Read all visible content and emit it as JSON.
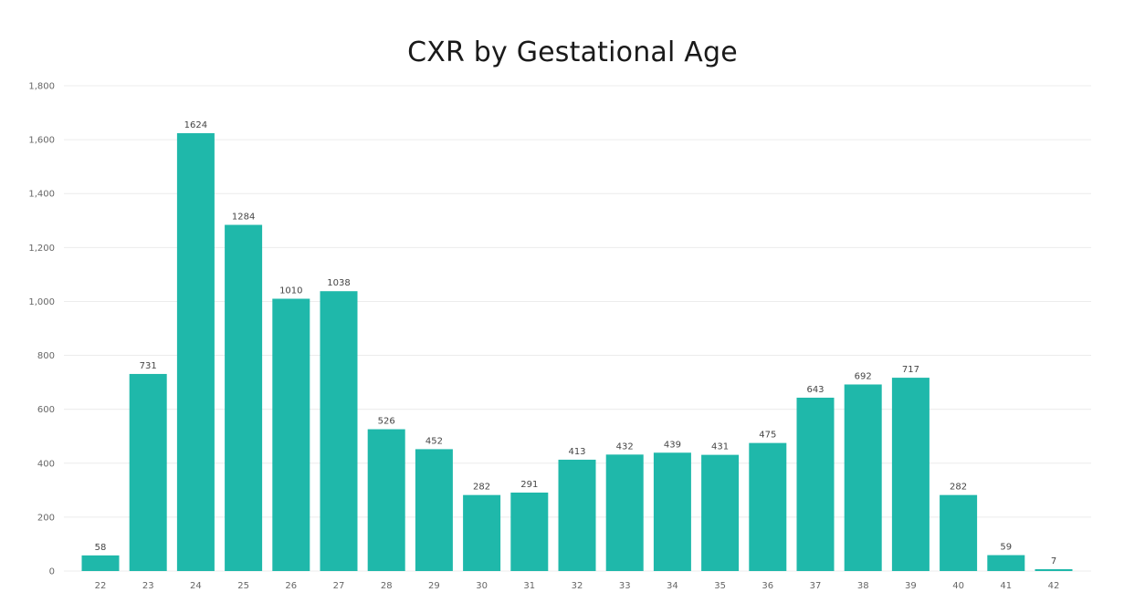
{
  "chart_data": {
    "type": "bar",
    "title": "CXR by Gestational Age",
    "xlabel": "",
    "ylabel": "",
    "categories": [
      "22",
      "23",
      "24",
      "25",
      "26",
      "27",
      "28",
      "29",
      "30",
      "31",
      "32",
      "33",
      "34",
      "35",
      "36",
      "37",
      "38",
      "39",
      "40",
      "41",
      "42"
    ],
    "values": [
      58,
      731,
      1624,
      1284,
      1010,
      1038,
      526,
      452,
      282,
      291,
      413,
      432,
      439,
      431,
      475,
      643,
      692,
      717,
      282,
      59,
      7
    ],
    "data_labels": [
      "58",
      "731",
      "1624",
      "1284",
      "1010",
      "1038",
      "526",
      "452",
      "282",
      "291",
      "413",
      "432",
      "439",
      "431",
      "475",
      "643",
      "692",
      "717",
      "282",
      "59",
      "7"
    ],
    "ylim": [
      0,
      1800
    ],
    "yticks": [
      0,
      200,
      400,
      600,
      800,
      1000,
      1200,
      1400,
      1600,
      1800
    ],
    "ytick_labels": [
      "0",
      "200",
      "400",
      "600",
      "800",
      "1,000",
      "1,200",
      "1,400",
      "1,600",
      "1,800"
    ],
    "grid": true,
    "bar_color": "#1fb8aa"
  }
}
